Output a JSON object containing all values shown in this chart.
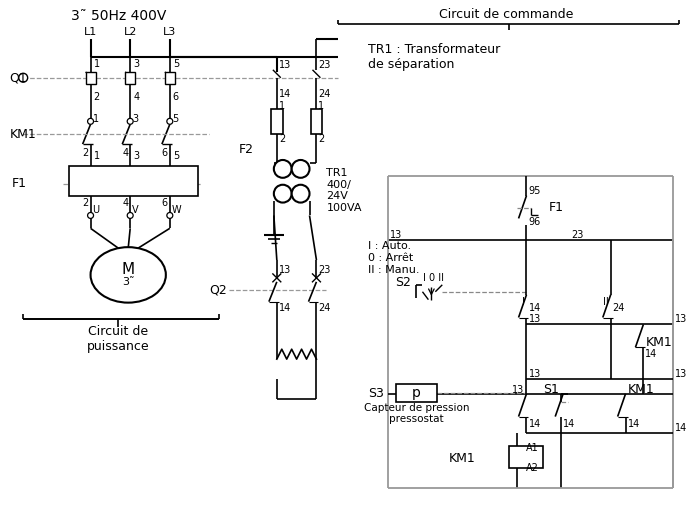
{
  "bg_color": "#ffffff",
  "lc": "#000000",
  "gc": "#999999",
  "dc": "#888888",
  "texts": {
    "power_label": "3˜ 50Hz 400V",
    "L1": "L1",
    "L2": "L2",
    "L3": "L3",
    "Q1": "Q1",
    "KM1_left": "KM1",
    "F1_left": "F1",
    "M_label": "M",
    "M_sub": "3˜",
    "circuit_puissance": "Circuit de\npuissance",
    "circuit_commande": "Circuit de commande",
    "TR1_desc": "TR1 : Transformateur\nde séparation",
    "F2_label": "F2",
    "Q2_label": "Q2",
    "F1_right": "F1",
    "S2_label": "S2",
    "S3_label": "S3",
    "S1_label": "S1",
    "KM1_right": "KM1",
    "KM1_coil": "KM1",
    "S2_modes": "I : Auto.\n0 : Arrêt\nII : Manu.",
    "S2_positions": "I 0 II",
    "capteur": "Capteur de pression\npressostat",
    "p_label": "p",
    "TR1_vals": "TR1\n400/\n24V\n100VA"
  }
}
